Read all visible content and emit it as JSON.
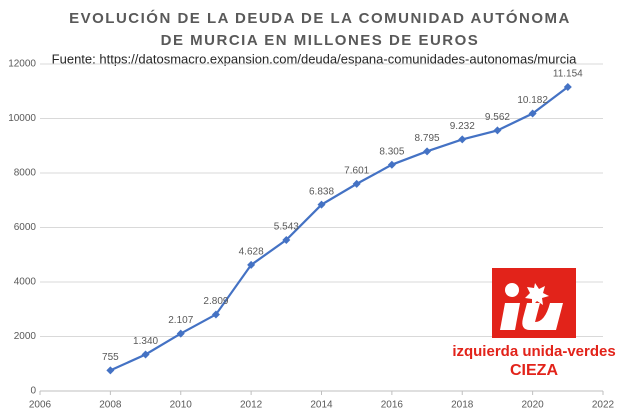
{
  "chart_data": {
    "type": "line",
    "title": [
      "EVOLUCIÓN DE LA DEUDA DE LA COMUNIDAD AUTÓNOMA",
      "DE MURCIA EN MILLONES DE EUROS"
    ],
    "subtitle": "Fuente: https://datosmacro.expansion.com/deuda/espana-comunidades-autonomas/murcia",
    "x": [
      2008,
      2009,
      2010,
      2011,
      2012,
      2013,
      2014,
      2015,
      2016,
      2017,
      2018,
      2019,
      2020,
      2021
    ],
    "series": [
      {
        "color": "#4472c4",
        "values": [
          755,
          1340,
          2107,
          2809,
          4628,
          5543,
          6838,
          7601,
          8305,
          8795,
          9232,
          9562,
          10182,
          11154
        ],
        "value_labels": [
          "755",
          "1.340",
          "2.107",
          "2.809",
          "4.628",
          "5.543",
          "6.838",
          "7.601",
          "8.305",
          "8.795",
          "9.232",
          "9.562",
          "10.182",
          "11.154"
        ]
      }
    ],
    "xlim": [
      2006,
      2022
    ],
    "xticks": [
      2006,
      2008,
      2010,
      2012,
      2014,
      2016,
      2018,
      2020,
      2022
    ],
    "ylim": [
      0,
      12000
    ],
    "yticks": [
      0,
      2000,
      4000,
      6000,
      8000,
      10000,
      12000
    ],
    "grid": true
  },
  "logo": {
    "text": "izquierda unida-verdes",
    "place": "CIEZA"
  }
}
